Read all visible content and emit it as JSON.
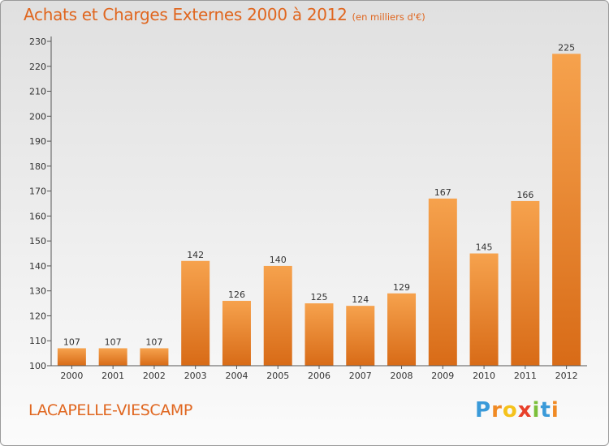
{
  "chart_data": {
    "type": "bar",
    "title": "Achats et Charges Externes 2000 à 2012",
    "subtitle": "(en milliers d'€)",
    "categories": [
      "2000",
      "2001",
      "2002",
      "2003",
      "2004",
      "2005",
      "2006",
      "2007",
      "2008",
      "2009",
      "2010",
      "2011",
      "2012"
    ],
    "values": [
      107,
      107,
      107,
      142,
      126,
      140,
      125,
      124,
      129,
      167,
      145,
      166,
      225
    ],
    "ylim": [
      100,
      230
    ],
    "yticks": [
      100,
      110,
      120,
      130,
      140,
      150,
      160,
      170,
      180,
      190,
      200,
      210,
      220,
      230
    ],
    "xlabel": "",
    "ylabel": "",
    "grid": false,
    "bar_color": "#f0862a"
  },
  "location": "LACAPELLE-VIESCAMP",
  "brand": {
    "letters": [
      "P",
      "r",
      "o",
      "x",
      "i",
      "t",
      "i"
    ],
    "colors": [
      "#3a9ad9",
      "#f08a24",
      "#f5c21b",
      "#e8402a",
      "#7bbf3a",
      "#3a9ad9",
      "#f08a24"
    ]
  }
}
